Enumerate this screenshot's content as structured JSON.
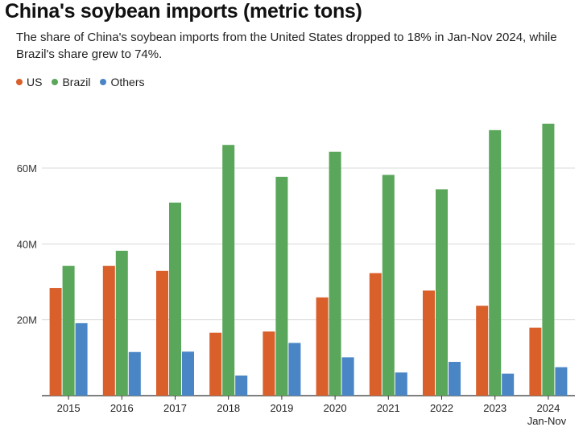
{
  "chart_data": {
    "type": "bar",
    "title": "China's soybean imports (metric tons)",
    "subtitle": "The share of China's soybean imports from the United States dropped to 18% in Jan-Nov 2024, while Brazil's share grew to 74%.",
    "categories": [
      "2015",
      "2016",
      "2017",
      "2018",
      "2019",
      "2020",
      "2021",
      "2022",
      "2023",
      "2024"
    ],
    "category_sublabels": [
      "",
      "",
      "",
      "",
      "",
      "",
      "",
      "",
      "",
      "Jan-Nov"
    ],
    "series": [
      {
        "name": "US",
        "color": "#d95f2b",
        "values": [
          28.4,
          34.2,
          32.9,
          16.6,
          16.9,
          25.9,
          32.3,
          27.7,
          23.7,
          17.9
        ]
      },
      {
        "name": "Brazil",
        "color": "#5aa65a",
        "values": [
          34.2,
          38.2,
          50.9,
          66.1,
          57.7,
          64.3,
          58.2,
          54.4,
          70.0,
          71.7
        ]
      },
      {
        "name": "Others",
        "color": "#4a86c5",
        "values": [
          19.1,
          11.5,
          11.6,
          5.3,
          13.9,
          10.1,
          6.1,
          8.9,
          5.8,
          7.5
        ]
      }
    ],
    "yticks": [
      20,
      40,
      60
    ],
    "ytick_labels": [
      "20M",
      "40M",
      "60M"
    ],
    "ylim": [
      0,
      80
    ],
    "grid": true,
    "legend_position": "top-left"
  }
}
